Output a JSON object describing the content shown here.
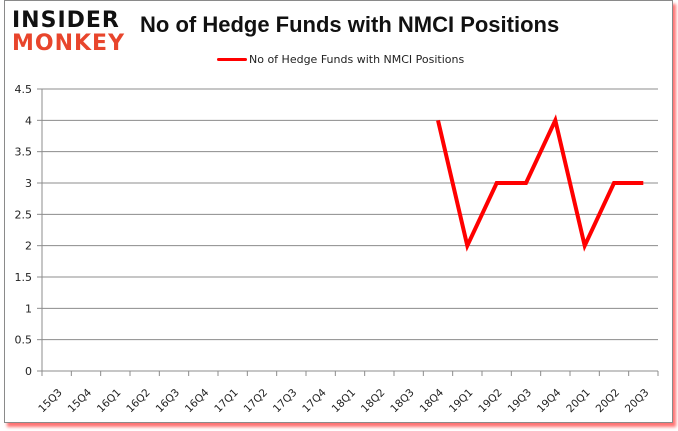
{
  "brand": {
    "line1": "INSIDER",
    "line2": "MONKEY",
    "accent": "#e8452c"
  },
  "chart_data": {
    "type": "line",
    "title": "No of Hedge Funds with NMCI Positions",
    "xlabel": "",
    "ylabel": "",
    "categories": [
      "15Q3",
      "15Q4",
      "16Q1",
      "16Q2",
      "16Q3",
      "16Q4",
      "17Q1",
      "17Q2",
      "17Q3",
      "17Q4",
      "18Q1",
      "18Q2",
      "18Q3",
      "18Q4",
      "19Q1",
      "19Q2",
      "19Q3",
      "19Q4",
      "20Q1",
      "20Q2",
      "20Q3"
    ],
    "series": [
      {
        "name": "No of Hedge Funds with NMCI Positions",
        "color": "#ff0000",
        "values": [
          null,
          null,
          null,
          null,
          null,
          null,
          null,
          null,
          null,
          null,
          null,
          null,
          null,
          4,
          2,
          3,
          3,
          4,
          2,
          3,
          3
        ]
      }
    ],
    "ylim": [
      0,
      4.5
    ],
    "yticks": [
      "0",
      "0.5",
      "1",
      "1.5",
      "2",
      "2.5",
      "3",
      "3.5",
      "4",
      "4.5"
    ],
    "grid": true,
    "legend_position": "top"
  }
}
